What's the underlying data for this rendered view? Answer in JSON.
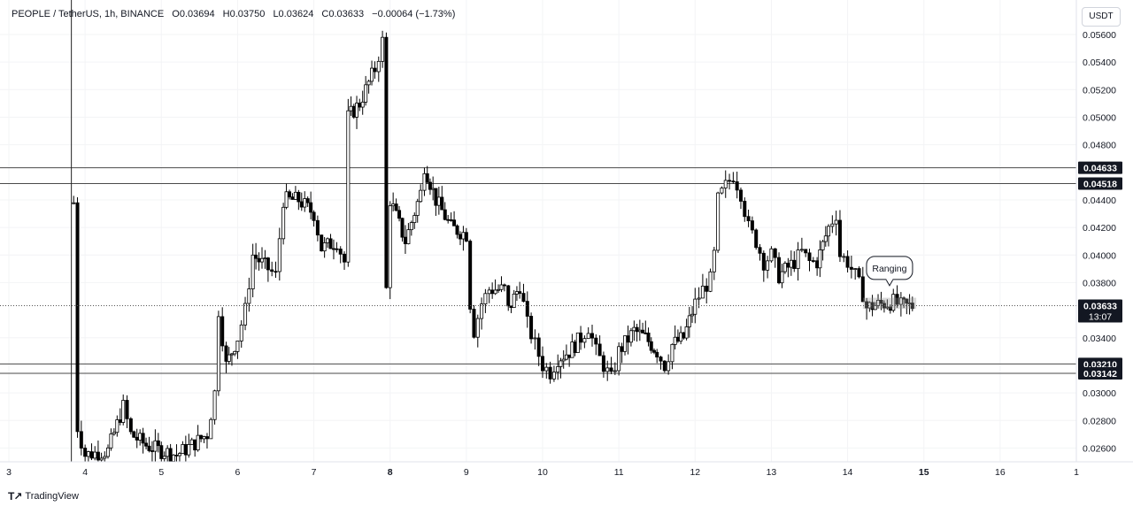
{
  "header": {
    "symbol": "PEOPLE / TetherUS, 1h, BINANCE",
    "open": "O0.03694",
    "high": "H0.03750",
    "low": "L0.03624",
    "close": "C0.03633",
    "change": "−0.00064 (−1.73%)"
  },
  "currency_button": "USDT",
  "brand": "TradingView",
  "chart_data": {
    "type": "candlestick",
    "symbol": "PEOPLE/USDT",
    "interval": "1h",
    "exchange": "BINANCE",
    "ylim": [
      0.025,
      0.0585
    ],
    "y_ticks": [
      "0.02600",
      "0.02800",
      "0.03000",
      "0.03400",
      "0.03800",
      "0.04000",
      "0.04200",
      "0.04400",
      "0.04800",
      "0.05000",
      "0.05200",
      "0.05400",
      "0.05600"
    ],
    "x_ticks": [
      "3",
      "4",
      "5",
      "6",
      "7",
      "8",
      "9",
      "10",
      "11",
      "12",
      "13",
      "14",
      "15",
      "16",
      "1"
    ],
    "x_day_range": [
      3,
      16
    ],
    "horizontal_levels": [
      {
        "value": 0.04633,
        "label": "0.04633"
      },
      {
        "value": 0.04518,
        "label": "0.04518"
      },
      {
        "value": 0.0321,
        "label": "0.03210"
      },
      {
        "value": 0.03142,
        "label": "0.03142"
      }
    ],
    "last_price": {
      "value": 0.03633,
      "label": "0.03633",
      "countdown": "13:07"
    },
    "annotation": {
      "text": "Ranging",
      "day": 14.55,
      "price": 0.039
    },
    "range_box": {
      "day_start": 14.2,
      "day_end": 14.9,
      "low": 0.0361,
      "high": 0.0369
    },
    "price_path": [
      [
        3.8,
        0.026
      ],
      [
        3.85,
        0.0438
      ],
      [
        3.9,
        0.0275
      ],
      [
        4.0,
        0.0255
      ],
      [
        4.3,
        0.0258
      ],
      [
        4.5,
        0.029
      ],
      [
        4.6,
        0.027
      ],
      [
        4.8,
        0.0262
      ],
      [
        5.0,
        0.0258
      ],
      [
        5.2,
        0.0255
      ],
      [
        5.4,
        0.0262
      ],
      [
        5.6,
        0.027
      ],
      [
        5.7,
        0.03
      ],
      [
        5.75,
        0.036
      ],
      [
        5.85,
        0.032
      ],
      [
        6.0,
        0.034
      ],
      [
        6.1,
        0.036
      ],
      [
        6.2,
        0.04
      ],
      [
        6.4,
        0.039
      ],
      [
        6.5,
        0.0385
      ],
      [
        6.6,
        0.044
      ],
      [
        6.8,
        0.044
      ],
      [
        7.0,
        0.043
      ],
      [
        7.1,
        0.0405
      ],
      [
        7.3,
        0.041
      ],
      [
        7.4,
        0.0395
      ],
      [
        7.45,
        0.05
      ],
      [
        7.6,
        0.051
      ],
      [
        7.8,
        0.0535
      ],
      [
        7.9,
        0.0555
      ],
      [
        7.95,
        0.0375
      ],
      [
        8.0,
        0.044
      ],
      [
        8.2,
        0.041
      ],
      [
        8.4,
        0.0445
      ],
      [
        8.45,
        0.0465
      ],
      [
        8.6,
        0.044
      ],
      [
        8.8,
        0.042
      ],
      [
        9.0,
        0.0415
      ],
      [
        9.05,
        0.0365
      ],
      [
        9.1,
        0.0345
      ],
      [
        9.2,
        0.0365
      ],
      [
        9.3,
        0.0375
      ],
      [
        9.5,
        0.0375
      ],
      [
        9.55,
        0.036
      ],
      [
        9.7,
        0.0378
      ],
      [
        9.8,
        0.035
      ],
      [
        9.9,
        0.0335
      ],
      [
        10.0,
        0.032
      ],
      [
        10.1,
        0.0315
      ],
      [
        10.2,
        0.0325
      ],
      [
        10.35,
        0.033
      ],
      [
        10.5,
        0.034
      ],
      [
        10.6,
        0.0348
      ],
      [
        10.7,
        0.033
      ],
      [
        10.8,
        0.032
      ],
      [
        10.9,
        0.031
      ],
      [
        11.0,
        0.033
      ],
      [
        11.2,
        0.0345
      ],
      [
        11.35,
        0.034
      ],
      [
        11.5,
        0.033
      ],
      [
        11.6,
        0.032
      ],
      [
        11.7,
        0.0335
      ],
      [
        11.85,
        0.034
      ],
      [
        12.0,
        0.0365
      ],
      [
        12.1,
        0.0375
      ],
      [
        12.2,
        0.0382
      ],
      [
        12.25,
        0.04
      ],
      [
        12.3,
        0.044
      ],
      [
        12.4,
        0.045
      ],
      [
        12.5,
        0.0458
      ],
      [
        12.6,
        0.0445
      ],
      [
        12.7,
        0.042
      ],
      [
        12.8,
        0.041
      ],
      [
        12.9,
        0.0395
      ],
      [
        13.0,
        0.04
      ],
      [
        13.1,
        0.0385
      ],
      [
        13.3,
        0.0395
      ],
      [
        13.4,
        0.0402
      ],
      [
        13.5,
        0.0395
      ],
      [
        13.6,
        0.0395
      ],
      [
        13.75,
        0.042
      ],
      [
        13.85,
        0.043
      ],
      [
        13.9,
        0.04
      ],
      [
        14.0,
        0.0395
      ],
      [
        14.1,
        0.0385
      ],
      [
        14.2,
        0.0372
      ],
      [
        14.25,
        0.0362
      ],
      [
        14.4,
        0.0364
      ],
      [
        14.6,
        0.0366
      ],
      [
        14.7,
        0.0363
      ],
      [
        14.85,
        0.0363
      ]
    ],
    "crosshair_day": 3.82
  }
}
